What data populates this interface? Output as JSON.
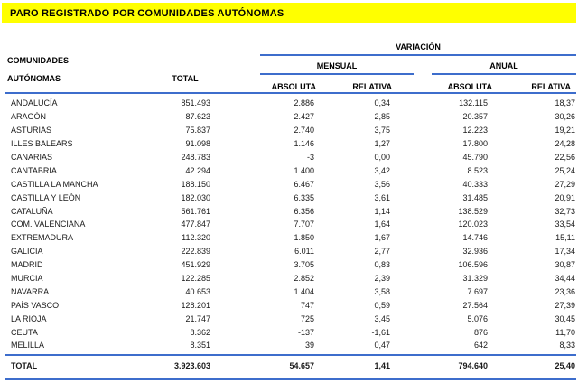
{
  "title": "PARO REGISTRADO POR COMUNIDADES AUTÓNOMAS",
  "colors": {
    "title_bg": "#ffff00",
    "rule_blue": "#3d6dcc",
    "text": "#1a1a1a"
  },
  "table": {
    "row_header_line1": "COMUNIDADES",
    "row_header_line2": "AUTÓNOMAS",
    "total_col_header": "TOTAL",
    "variation_group_header": "VARIACIÓN",
    "mensual_group_header": "MENSUAL",
    "anual_group_header": "ANUAL",
    "mensual_absoluta_header": "ABSOLUTA",
    "mensual_relativa_header": "RELATIVA",
    "anual_absoluta_header": "ABSOLUTA",
    "anual_relativa_header": "RELATIVA",
    "rows": [
      {
        "name": "ANDALUCÍA",
        "total": "851.493",
        "mensual_absoluta": "2.886",
        "mensual_relativa": "0,34",
        "anual_absoluta": "132.115",
        "anual_relativa": "18,37"
      },
      {
        "name": "ARAGÓN",
        "total": "87.623",
        "mensual_absoluta": "2.427",
        "mensual_relativa": "2,85",
        "anual_absoluta": "20.357",
        "anual_relativa": "30,26"
      },
      {
        "name": "ASTURIAS",
        "total": "75.837",
        "mensual_absoluta": "2.740",
        "mensual_relativa": "3,75",
        "anual_absoluta": "12.223",
        "anual_relativa": "19,21"
      },
      {
        "name": "ILLES BALEARS",
        "total": "91.098",
        "mensual_absoluta": "1.146",
        "mensual_relativa": "1,27",
        "anual_absoluta": "17.800",
        "anual_relativa": "24,28"
      },
      {
        "name": "CANARIAS",
        "total": "248.783",
        "mensual_absoluta": "-3",
        "mensual_relativa": "0,00",
        "anual_absoluta": "45.790",
        "anual_relativa": "22,56"
      },
      {
        "name": "CANTABRIA",
        "total": "42.294",
        "mensual_absoluta": "1.400",
        "mensual_relativa": "3,42",
        "anual_absoluta": "8.523",
        "anual_relativa": "25,24"
      },
      {
        "name": "CASTILLA LA MANCHA",
        "total": "188.150",
        "mensual_absoluta": "6.467",
        "mensual_relativa": "3,56",
        "anual_absoluta": "40.333",
        "anual_relativa": "27,29"
      },
      {
        "name": "CASTILLA Y LEÓN",
        "total": "182.030",
        "mensual_absoluta": "6.335",
        "mensual_relativa": "3,61",
        "anual_absoluta": "31.485",
        "anual_relativa": "20,91"
      },
      {
        "name": "CATALUÑA",
        "total": "561.761",
        "mensual_absoluta": "6.356",
        "mensual_relativa": "1,14",
        "anual_absoluta": "138.529",
        "anual_relativa": "32,73"
      },
      {
        "name": "COM. VALENCIANA",
        "total": "477.847",
        "mensual_absoluta": "7.707",
        "mensual_relativa": "1,64",
        "anual_absoluta": "120.023",
        "anual_relativa": "33,54"
      },
      {
        "name": "EXTREMADURA",
        "total": "112.320",
        "mensual_absoluta": "1.850",
        "mensual_relativa": "1,67",
        "anual_absoluta": "14.746",
        "anual_relativa": "15,11"
      },
      {
        "name": "GALICIA",
        "total": "222.839",
        "mensual_absoluta": "6.011",
        "mensual_relativa": "2,77",
        "anual_absoluta": "32.936",
        "anual_relativa": "17,34"
      },
      {
        "name": "MADRID",
        "total": "451.929",
        "mensual_absoluta": "3.705",
        "mensual_relativa": "0,83",
        "anual_absoluta": "106.596",
        "anual_relativa": "30,87"
      },
      {
        "name": "MURCIA",
        "total": "122.285",
        "mensual_absoluta": "2.852",
        "mensual_relativa": "2,39",
        "anual_absoluta": "31.329",
        "anual_relativa": "34,44"
      },
      {
        "name": "NAVARRA",
        "total": "40.653",
        "mensual_absoluta": "1.404",
        "mensual_relativa": "3,58",
        "anual_absoluta": "7.697",
        "anual_relativa": "23,36"
      },
      {
        "name": "PAÍS VASCO",
        "total": "128.201",
        "mensual_absoluta": "747",
        "mensual_relativa": "0,59",
        "anual_absoluta": "27.564",
        "anual_relativa": "27,39"
      },
      {
        "name": "LA RIOJA",
        "total": "21.747",
        "mensual_absoluta": "725",
        "mensual_relativa": "3,45",
        "anual_absoluta": "5.076",
        "anual_relativa": "30,45"
      },
      {
        "name": "CEUTA",
        "total": "8.362",
        "mensual_absoluta": "-137",
        "mensual_relativa": "-1,61",
        "anual_absoluta": "876",
        "anual_relativa": "11,70"
      },
      {
        "name": "MELILLA",
        "total": "8.351",
        "mensual_absoluta": "39",
        "mensual_relativa": "0,47",
        "anual_absoluta": "642",
        "anual_relativa": "8,33"
      }
    ],
    "total_row": {
      "label": "TOTAL",
      "total": "3.923.603",
      "mensual_absoluta": "54.657",
      "mensual_relativa": "1,41",
      "anual_absoluta": "794.640",
      "anual_relativa": "25,40"
    }
  }
}
